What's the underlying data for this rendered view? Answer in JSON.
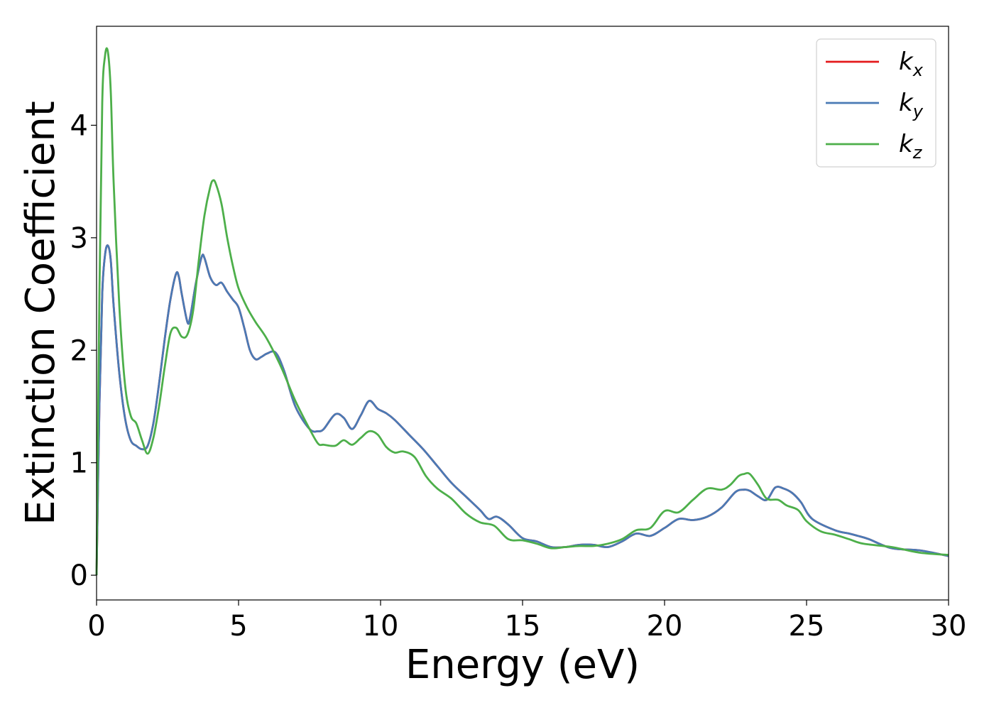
{
  "chart_data": {
    "type": "line",
    "xlabel": "Energy (eV)",
    "ylabel": "Extinction Coefficient",
    "xlim": [
      0,
      30
    ],
    "ylim": [
      -0.22,
      4.88
    ],
    "xticks": [
      0,
      5,
      10,
      15,
      20,
      25,
      30
    ],
    "yticks": [
      0,
      1,
      2,
      3,
      4
    ],
    "grid": false,
    "legend_position": "top-right",
    "series": [
      {
        "name": "k_x",
        "label_main": "k",
        "label_sub": "x",
        "color": "#e41a1c",
        "x": [
          0,
          0.1,
          0.2,
          0.3,
          0.4,
          0.5,
          0.6,
          0.8,
          1.0,
          1.2,
          1.4,
          1.6,
          1.8,
          2.0,
          2.2,
          2.4,
          2.6,
          2.8,
          2.9,
          3.0,
          3.2,
          3.3,
          3.5,
          3.7,
          3.8,
          4.0,
          4.2,
          4.4,
          4.6,
          4.8,
          5.0,
          5.2,
          5.4,
          5.6,
          5.8,
          6.0,
          6.3,
          6.6,
          7.0,
          7.5,
          7.8,
          8.0,
          8.4,
          8.7,
          9.0,
          9.3,
          9.6,
          9.9,
          10.2,
          10.5,
          11.0,
          11.5,
          12.0,
          12.5,
          13.0,
          13.5,
          13.8,
          14.1,
          14.5,
          15.0,
          15.5,
          16.0,
          16.5,
          17.0,
          17.5,
          18.0,
          18.5,
          19.0,
          19.5,
          20.0,
          20.5,
          21.0,
          21.5,
          22.0,
          22.5,
          22.8,
          23.0,
          23.3,
          23.6,
          23.9,
          24.2,
          24.5,
          24.8,
          25.2,
          26.0,
          26.5,
          26.8,
          27.2,
          28.0,
          29.0,
          30.0
        ],
        "values": [
          0.0,
          1.5,
          2.5,
          2.85,
          2.93,
          2.8,
          2.4,
          1.8,
          1.4,
          1.2,
          1.15,
          1.12,
          1.15,
          1.35,
          1.7,
          2.1,
          2.45,
          2.68,
          2.65,
          2.5,
          2.25,
          2.3,
          2.6,
          2.83,
          2.82,
          2.65,
          2.58,
          2.6,
          2.52,
          2.45,
          2.38,
          2.2,
          2.0,
          1.92,
          1.94,
          1.97,
          1.98,
          1.82,
          1.5,
          1.3,
          1.28,
          1.3,
          1.43,
          1.4,
          1.3,
          1.42,
          1.55,
          1.48,
          1.44,
          1.38,
          1.25,
          1.12,
          0.97,
          0.82,
          0.7,
          0.58,
          0.5,
          0.52,
          0.45,
          0.33,
          0.3,
          0.25,
          0.25,
          0.27,
          0.27,
          0.25,
          0.3,
          0.37,
          0.35,
          0.42,
          0.5,
          0.49,
          0.52,
          0.6,
          0.74,
          0.76,
          0.75,
          0.7,
          0.67,
          0.78,
          0.77,
          0.73,
          0.65,
          0.5,
          0.4,
          0.37,
          0.35,
          0.32,
          0.24,
          0.22,
          0.17
        ]
      },
      {
        "name": "k_y",
        "label_main": "k",
        "label_sub": "y",
        "color": "#4a7ab5",
        "x": [
          0,
          0.1,
          0.2,
          0.3,
          0.4,
          0.5,
          0.6,
          0.8,
          1.0,
          1.2,
          1.4,
          1.6,
          1.8,
          2.0,
          2.2,
          2.4,
          2.6,
          2.8,
          2.9,
          3.0,
          3.2,
          3.3,
          3.5,
          3.7,
          3.8,
          4.0,
          4.2,
          4.4,
          4.6,
          4.8,
          5.0,
          5.2,
          5.4,
          5.6,
          5.8,
          6.0,
          6.3,
          6.6,
          7.0,
          7.5,
          7.8,
          8.0,
          8.4,
          8.7,
          9.0,
          9.3,
          9.6,
          9.9,
          10.2,
          10.5,
          11.0,
          11.5,
          12.0,
          12.5,
          13.0,
          13.5,
          13.8,
          14.1,
          14.5,
          15.0,
          15.5,
          16.0,
          16.5,
          17.0,
          17.5,
          18.0,
          18.5,
          19.0,
          19.5,
          20.0,
          20.5,
          21.0,
          21.5,
          22.0,
          22.5,
          22.8,
          23.0,
          23.3,
          23.6,
          23.9,
          24.2,
          24.5,
          24.8,
          25.2,
          26.0,
          26.5,
          26.8,
          27.2,
          28.0,
          29.0,
          30.0
        ],
        "values": [
          0.0,
          1.5,
          2.5,
          2.85,
          2.93,
          2.8,
          2.4,
          1.8,
          1.4,
          1.2,
          1.15,
          1.12,
          1.15,
          1.35,
          1.7,
          2.1,
          2.45,
          2.68,
          2.65,
          2.5,
          2.25,
          2.3,
          2.6,
          2.83,
          2.82,
          2.65,
          2.58,
          2.6,
          2.52,
          2.45,
          2.38,
          2.2,
          2.0,
          1.92,
          1.94,
          1.97,
          1.98,
          1.82,
          1.5,
          1.3,
          1.28,
          1.3,
          1.43,
          1.4,
          1.3,
          1.42,
          1.55,
          1.48,
          1.44,
          1.38,
          1.25,
          1.12,
          0.97,
          0.82,
          0.7,
          0.58,
          0.5,
          0.52,
          0.45,
          0.33,
          0.3,
          0.25,
          0.25,
          0.27,
          0.27,
          0.25,
          0.3,
          0.37,
          0.35,
          0.42,
          0.5,
          0.49,
          0.52,
          0.6,
          0.74,
          0.76,
          0.75,
          0.7,
          0.67,
          0.78,
          0.77,
          0.73,
          0.65,
          0.5,
          0.4,
          0.37,
          0.35,
          0.32,
          0.24,
          0.22,
          0.17
        ]
      },
      {
        "name": "k_z",
        "label_main": "k",
        "label_sub": "z",
        "color": "#4daf4a",
        "x": [
          0,
          0.1,
          0.2,
          0.3,
          0.4,
          0.5,
          0.6,
          0.8,
          1.0,
          1.2,
          1.4,
          1.6,
          1.8,
          2.0,
          2.2,
          2.4,
          2.6,
          2.8,
          3.0,
          3.2,
          3.4,
          3.6,
          3.8,
          4.0,
          4.1,
          4.2,
          4.4,
          4.6,
          4.8,
          5.0,
          5.3,
          5.6,
          6.0,
          6.5,
          7.0,
          7.5,
          7.8,
          8.0,
          8.4,
          8.7,
          9.0,
          9.3,
          9.6,
          9.9,
          10.2,
          10.5,
          10.8,
          11.2,
          11.6,
          12.0,
          12.5,
          13.0,
          13.5,
          14.0,
          14.5,
          15.0,
          15.5,
          16.0,
          16.5,
          17.0,
          17.5,
          18.0,
          18.5,
          19.0,
          19.5,
          20.0,
          20.5,
          21.0,
          21.5,
          22.0,
          22.3,
          22.6,
          22.8,
          23.0,
          23.3,
          23.6,
          24.0,
          24.3,
          24.7,
          25.0,
          25.5,
          26.0,
          26.5,
          27.0,
          28.0,
          29.0,
          30.0
        ],
        "values": [
          0.0,
          2.5,
          4.2,
          4.62,
          4.65,
          4.3,
          3.5,
          2.4,
          1.7,
          1.42,
          1.35,
          1.2,
          1.08,
          1.22,
          1.5,
          1.85,
          2.15,
          2.2,
          2.12,
          2.14,
          2.35,
          2.8,
          3.2,
          3.45,
          3.51,
          3.48,
          3.3,
          3.0,
          2.75,
          2.55,
          2.38,
          2.25,
          2.1,
          1.85,
          1.55,
          1.3,
          1.17,
          1.16,
          1.15,
          1.2,
          1.16,
          1.22,
          1.28,
          1.25,
          1.14,
          1.09,
          1.1,
          1.05,
          0.88,
          0.77,
          0.68,
          0.55,
          0.47,
          0.44,
          0.32,
          0.31,
          0.28,
          0.24,
          0.25,
          0.26,
          0.26,
          0.28,
          0.32,
          0.4,
          0.42,
          0.57,
          0.56,
          0.67,
          0.77,
          0.76,
          0.8,
          0.88,
          0.9,
          0.9,
          0.8,
          0.68,
          0.67,
          0.62,
          0.58,
          0.48,
          0.39,
          0.36,
          0.32,
          0.28,
          0.25,
          0.2,
          0.18
        ]
      }
    ]
  }
}
